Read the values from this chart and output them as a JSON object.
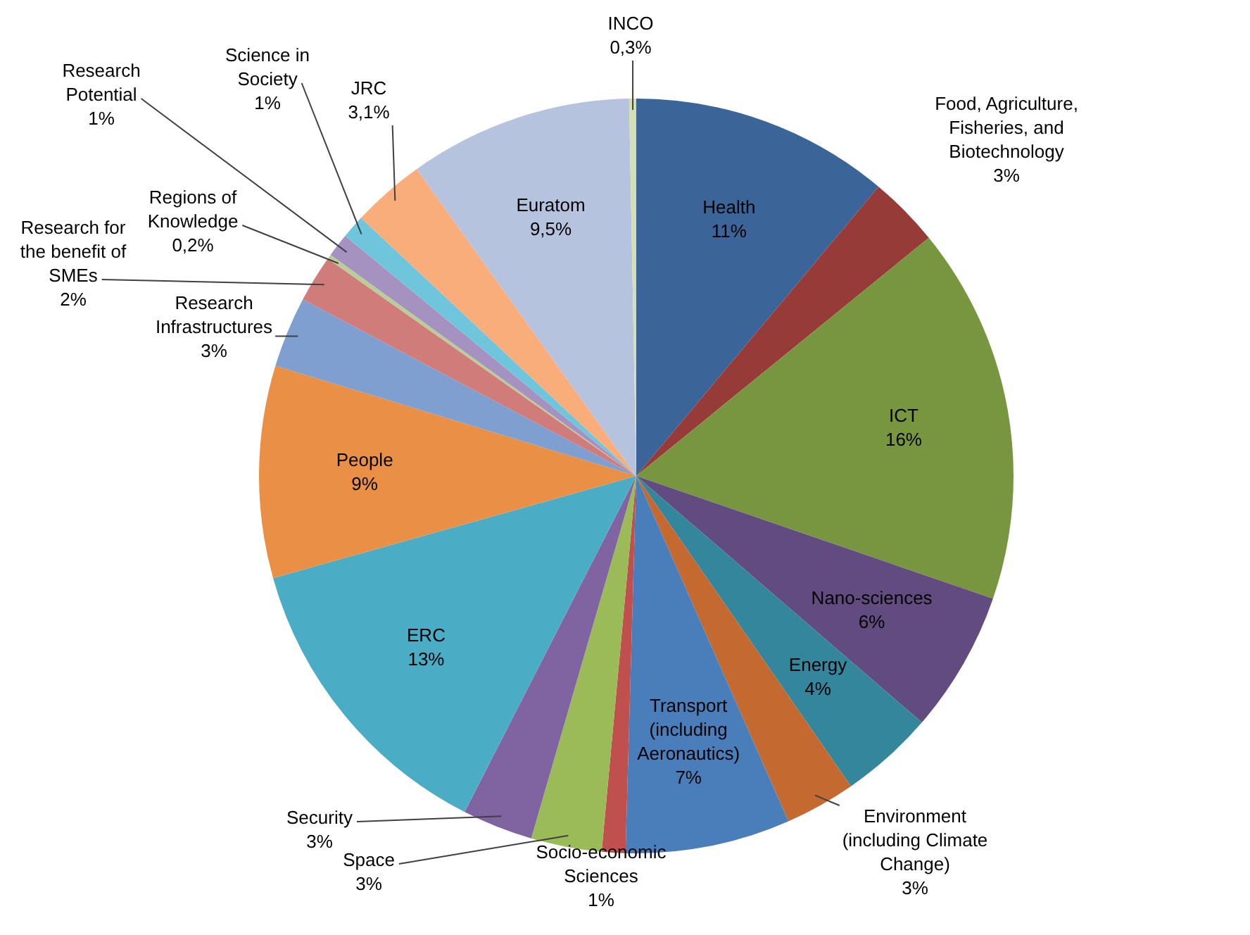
{
  "chart_data": {
    "type": "pie",
    "categories": [
      "Health",
      "Food, Agriculture, Fisheries, and Biotechnology",
      "ICT",
      "Nano-sciences",
      "Energy",
      "Environment (including Climate Change)",
      "Transport (including Aeronautics)",
      "Socio-economic Sciences",
      "Space",
      "Security",
      "ERC",
      "People",
      "Research Infrastructures",
      "Research for the benefit of SMEs",
      "Regions of Knowledge",
      "Research Potential",
      "Science in Society",
      "JRC",
      "Euratom",
      "INCO"
    ],
    "values": [
      11,
      3,
      16,
      6,
      4,
      3,
      7,
      1,
      3,
      3,
      13,
      9,
      3,
      2,
      0.2,
      1,
      1,
      3.1,
      9.5,
      0.3
    ],
    "value_labels": [
      "11%",
      "3%",
      "16%",
      "6%",
      "4%",
      "3%",
      "7%",
      "1%",
      "3%",
      "3%",
      "13%",
      "9%",
      "3%",
      "2%",
      "0,2%",
      "1%",
      "1%",
      "3,1%",
      "9,5%",
      "0,3%"
    ],
    "colors": [
      "#3b6598",
      "#973b39",
      "#78953f",
      "#624b7e",
      "#34869d",
      "#c4692f",
      "#4a7ebb",
      "#c0504d",
      "#9bbb59",
      "#8064a2",
      "#4bacc6",
      "#ea8f46",
      "#7f9fd0",
      "#d07c7a",
      "#b9cd96",
      "#a692c0",
      "#6fc5dc",
      "#f9ad7a",
      "#b6c3df",
      "#d4e0b4"
    ],
    "legend": false
  }
}
